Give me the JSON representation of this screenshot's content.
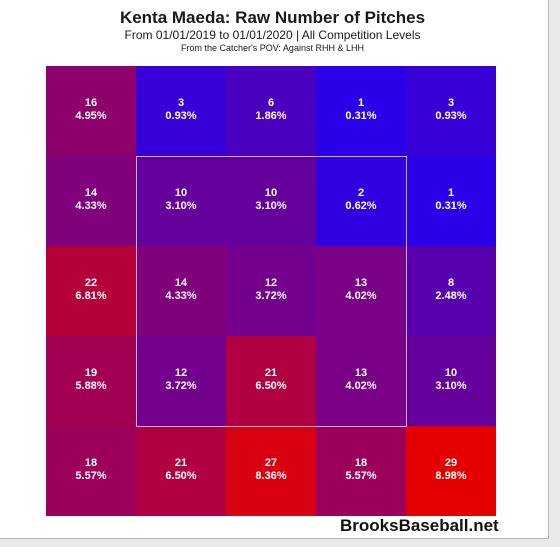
{
  "header": {
    "title": "Kenta Maeda: Raw Number of Pitches",
    "subtitle": "From 01/01/2019 to 01/01/2020 | All Competition Levels",
    "note": "From the Catcher's POV:  Against RHH & LHH"
  },
  "watermark": "BrooksBaseball.net",
  "chart_data": {
    "type": "heatmap",
    "title": "Kenta Maeda: Raw Number of Pitches",
    "subtitle": "From 01/01/2019 to 01/01/2020 | All Competition Levels",
    "rows": 5,
    "cols": 5,
    "strike_zone": {
      "row_start": 1,
      "row_end": 3,
      "col_start": 1,
      "col_end": 3
    },
    "color_scale": {
      "low": "#2a00e8",
      "high": "#e50000"
    },
    "counts": [
      [
        16,
        3,
        6,
        1,
        3
      ],
      [
        14,
        10,
        10,
        2,
        1
      ],
      [
        22,
        14,
        12,
        13,
        8
      ],
      [
        19,
        12,
        21,
        13,
        10
      ],
      [
        18,
        21,
        27,
        18,
        29
      ]
    ],
    "percents": [
      [
        "4.95%",
        "0.93%",
        "1.86%",
        "0.31%",
        "0.93%"
      ],
      [
        "4.33%",
        "3.10%",
        "3.10%",
        "0.62%",
        "0.31%"
      ],
      [
        "6.81%",
        "4.33%",
        "3.72%",
        "4.02%",
        "2.48%"
      ],
      [
        "5.88%",
        "3.72%",
        "6.50%",
        "4.02%",
        "3.10%"
      ],
      [
        "5.57%",
        "6.50%",
        "8.36%",
        "5.57%",
        "8.98%"
      ]
    ]
  }
}
